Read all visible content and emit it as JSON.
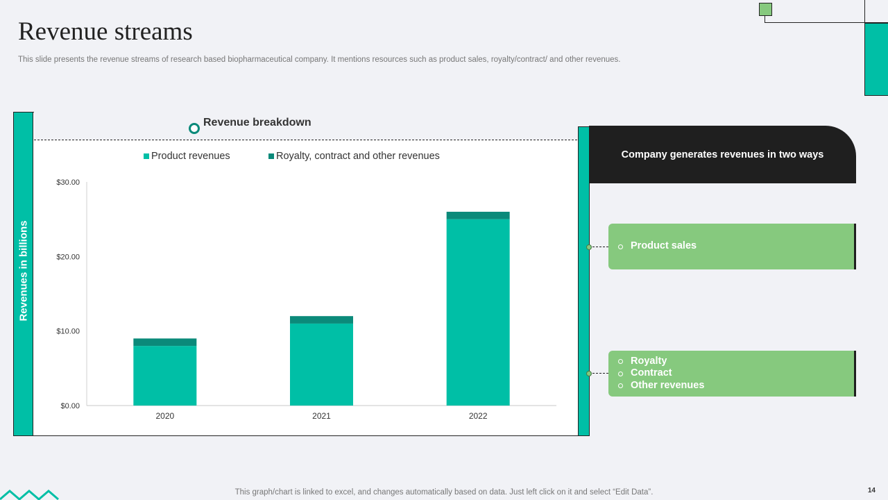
{
  "slide": {
    "title": "Revenue streams",
    "subtitle": "This slide presents the revenue streams of research based biopharmaceutical company. It mentions resources such as product sales, royalty/contract/ and other revenues.",
    "footnote": "This graph/chart is linked to excel,  and changes automatically based on data. Just left click on it and select “Edit Data”.",
    "page_number": "14"
  },
  "chart_panel": {
    "heading": "Revenue breakdown",
    "axis_label": "Revenues in billions"
  },
  "chart_data": {
    "type": "bar",
    "stacked": true,
    "categories": [
      "2020",
      "2021",
      "2022"
    ],
    "series": [
      {
        "name": "Product revenues",
        "values": [
          8,
          11,
          25
        ],
        "color": "#00bfa6"
      },
      {
        "name": "Royalty, contract and other revenues",
        "values": [
          1,
          1,
          1
        ],
        "color": "#0b8a7a"
      }
    ],
    "ylim": [
      0,
      30
    ],
    "yticks": [
      0,
      10,
      20,
      30
    ],
    "ytick_labels": [
      "$0.00",
      "$10.00",
      "$20.00",
      "$30.00"
    ],
    "ylabel": "Revenues in billions",
    "xlabel": "",
    "legend_position": "top",
    "grid": false
  },
  "info_panel": {
    "header": "Company  generates revenues in two ways",
    "ways": [
      {
        "items": [
          "Product sales"
        ]
      },
      {
        "items": [
          "Royalty",
          "Contract",
          "Other revenues"
        ]
      }
    ]
  },
  "colors": {
    "teal": "#00bfa6",
    "dark_teal": "#0b8a7a",
    "green": "#86c97e",
    "dark": "#1f1f1f",
    "background": "#f1f2f6"
  }
}
